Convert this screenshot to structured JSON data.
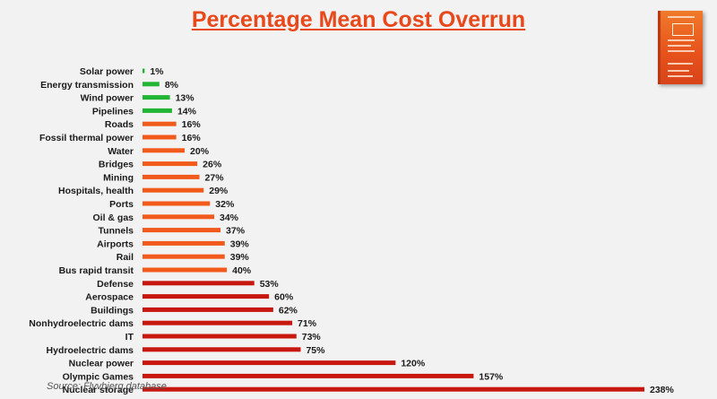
{
  "title": "Percentage Mean Cost Overrun",
  "source": "Source: Flyvbjerg database",
  "colors": {
    "green": "#22b533",
    "orange": "#f25a1c",
    "red": "#c8170f",
    "title": "#e8481a"
  },
  "chart_data": {
    "type": "bar",
    "orientation": "horizontal",
    "grid": false,
    "legend": "none",
    "unit": "%",
    "xlim": [
      0,
      238
    ],
    "categories": [
      "Solar power",
      "Energy transmission",
      "Wind power",
      "Pipelines",
      "Roads",
      "Fossil thermal power",
      "Water",
      "Bridges",
      "Mining",
      "Hospitals, health",
      "Ports",
      "Oil & gas",
      "Tunnels",
      "Airports",
      "Rail",
      "Bus rapid transit",
      "Defense",
      "Aerospace",
      "Buildings",
      "Nonhydroelectric dams",
      "IT",
      "Hydroelectric dams",
      "Nuclear power",
      "Olympic Games",
      "Nuclear storage"
    ],
    "values": [
      1,
      8,
      13,
      14,
      16,
      16,
      20,
      26,
      27,
      29,
      32,
      34,
      37,
      39,
      39,
      40,
      53,
      60,
      62,
      71,
      73,
      75,
      120,
      157,
      238
    ],
    "labels": [
      "1%",
      "8%",
      "13%",
      "14%",
      "16%",
      "16%",
      "20%",
      "26%",
      "27%",
      "29%",
      "32%",
      "34%",
      "37%",
      "39%",
      "39%",
      "40%",
      "53%",
      "60%",
      "62%",
      "71%",
      "73%",
      "75%",
      "120%",
      "157%",
      "238%"
    ],
    "bar_colors": [
      "green",
      "green",
      "green",
      "green",
      "orange",
      "orange",
      "orange",
      "orange",
      "orange",
      "orange",
      "orange",
      "orange",
      "orange",
      "orange",
      "orange",
      "orange",
      "red",
      "red",
      "red",
      "red",
      "red",
      "red",
      "red",
      "red",
      "red"
    ]
  }
}
